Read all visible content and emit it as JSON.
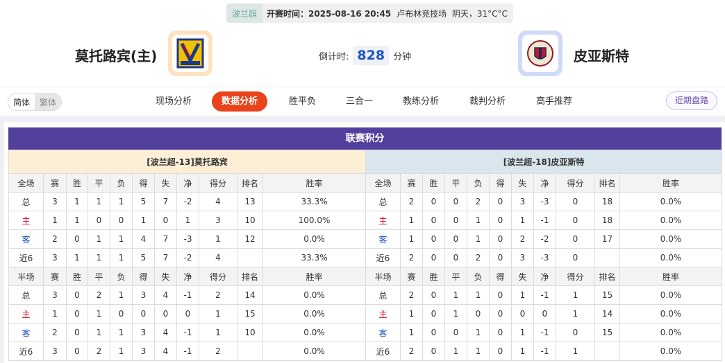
{
  "match": {
    "league": "波兰超",
    "kickoff": "开赛时间：2025-08-16 20:45",
    "venue": "卢布林竞技场",
    "weather": "阴天，31°C°C",
    "home": "莫托路宾(主)",
    "away": "皮亚斯特",
    "countdown_label": "倒计时:",
    "countdown": "828",
    "countdown_unit": "分钟"
  },
  "nav": {
    "lang": [
      "简体",
      "繁体"
    ],
    "tabs": [
      "现场分析",
      "数据分析",
      "胜平负",
      "三合一",
      "教练分析",
      "裁判分析",
      "高手推荐"
    ],
    "active": 1,
    "recent": "近期盘路"
  },
  "section_title": "联赛积分",
  "columns_full": [
    "全场",
    "赛",
    "胜",
    "平",
    "负",
    "得",
    "失",
    "净",
    "得分",
    "排名",
    "胜率"
  ],
  "columns_half": [
    "半场",
    "赛",
    "胜",
    "平",
    "负",
    "得",
    "失",
    "净",
    "得分",
    "排名",
    "胜率"
  ],
  "home_table": {
    "title": "[波兰超-13]莫托路宾",
    "full": [
      [
        "总",
        "3",
        "1",
        "1",
        "1",
        "5",
        "7",
        "-2",
        "4",
        "13",
        "33.3%"
      ],
      [
        "主",
        "1",
        "1",
        "0",
        "0",
        "1",
        "0",
        "1",
        "3",
        "10",
        "100.0%"
      ],
      [
        "客",
        "2",
        "0",
        "1",
        "1",
        "4",
        "7",
        "-3",
        "1",
        "12",
        "0.0%"
      ],
      [
        "近6",
        "3",
        "1",
        "1",
        "1",
        "5",
        "7",
        "-2",
        "4",
        "",
        "33.3%"
      ]
    ],
    "half": [
      [
        "总",
        "3",
        "0",
        "2",
        "1",
        "3",
        "4",
        "-1",
        "2",
        "14",
        "0.0%"
      ],
      [
        "主",
        "1",
        "0",
        "1",
        "0",
        "0",
        "0",
        "0",
        "1",
        "15",
        "0.0%"
      ],
      [
        "客",
        "2",
        "0",
        "1",
        "1",
        "3",
        "4",
        "-1",
        "1",
        "10",
        "0.0%"
      ],
      [
        "近6",
        "3",
        "0",
        "2",
        "1",
        "3",
        "4",
        "-1",
        "2",
        "",
        "0.0%"
      ]
    ]
  },
  "away_table": {
    "title": "[波兰超-18]皮亚斯特",
    "full": [
      [
        "总",
        "2",
        "0",
        "0",
        "2",
        "0",
        "3",
        "-3",
        "0",
        "18",
        "0.0%"
      ],
      [
        "主",
        "1",
        "0",
        "0",
        "1",
        "0",
        "1",
        "-1",
        "0",
        "18",
        "0.0%"
      ],
      [
        "客",
        "1",
        "0",
        "0",
        "1",
        "0",
        "2",
        "-2",
        "0",
        "17",
        "0.0%"
      ],
      [
        "近6",
        "2",
        "0",
        "0",
        "2",
        "0",
        "3",
        "-3",
        "0",
        "",
        "0.0%"
      ]
    ],
    "half": [
      [
        "总",
        "2",
        "0",
        "1",
        "1",
        "0",
        "1",
        "-1",
        "1",
        "15",
        "0.0%"
      ],
      [
        "主",
        "1",
        "0",
        "1",
        "0",
        "0",
        "0",
        "0",
        "1",
        "14",
        "0.0%"
      ],
      [
        "客",
        "1",
        "0",
        "0",
        "1",
        "0",
        "1",
        "-1",
        "0",
        "15",
        "0.0%"
      ],
      [
        "近6",
        "2",
        "0",
        "1",
        "1",
        "0",
        "1",
        "-1",
        "1",
        "",
        "0.0%"
      ]
    ]
  },
  "colors": {
    "accent": "#e8431a",
    "title_bg": "#533f9c",
    "home_bg": "#fcefd6",
    "away_bg": "#dae6ee"
  }
}
